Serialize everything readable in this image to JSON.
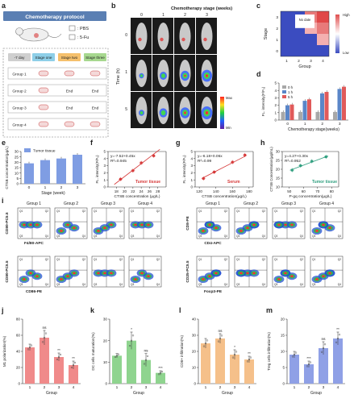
{
  "panels": {
    "a": {
      "letter": "a",
      "title": "Chemotherapy protocol",
      "legend": [
        "PBS",
        "5-Fu"
      ],
      "headers": [
        "-7 day",
        "Stage one",
        "Stage two",
        "Stage three"
      ],
      "groups": [
        "Group 1",
        "Group 2",
        "Group 3",
        "Group 4"
      ],
      "end": "End"
    },
    "b": {
      "letter": "b",
      "title": "Chemotherapy stage (weeks)",
      "ylabel": "Time (h)",
      "cols": [
        "0",
        "1",
        "2",
        "3"
      ],
      "rows": [
        "0",
        "1",
        "5"
      ],
      "scale_max": "Max",
      "scale_min": "Min"
    },
    "c": {
      "letter": "c",
      "note": "No date",
      "ylabel": "Stage",
      "xlabel": "Group",
      "cbar_high": "High",
      "cbar_low": "Low",
      "colors": {
        "low": "#3b4cc0",
        "high": "#e05050"
      }
    },
    "d": {
      "letter": "d",
      "ylabel": "FL. intensity(F/F₀)",
      "xlabel": "Chemotherapy stage(weeks)",
      "legend": [
        "0 h",
        "1 h",
        "5 h"
      ]
    },
    "e": {
      "letter": "e",
      "legend": "Tumor tissue",
      "ylabel": "CTSB concentration(μg/L)",
      "xlabel": "Stage (week)"
    },
    "f": {
      "letter": "f",
      "eq": "y=-7.52+0.45x",
      "r2": "R²=0.945",
      "label": "Tumor tissue",
      "ylabel": "FL. intensity(F/F₀)",
      "xlabel": "CTSB concentration (μg/L)"
    },
    "g": {
      "letter": "g",
      "eq": "y=-6.18+0.06x",
      "r2": "R²=0.99",
      "label": "Serum",
      "ylabel": "FL. intensity(F/F₀)",
      "xlabel": "CTSB concentration(μg/L)"
    },
    "h": {
      "letter": "h",
      "eq": "y=4.27+0.30x",
      "r2": "R²=0.952",
      "label": "Tumor tissue",
      "ylabel": "CTSB Concentration(μg/mL)",
      "xlabel": "P-gq concentration(μg/L)"
    },
    "i": {
      "letter": "i",
      "groups": [
        "Group 1",
        "Group 2",
        "Group 3",
        "Group 4"
      ],
      "left_axes": [
        [
          "F4/80-APC",
          "CD80-PC5.5"
        ],
        [
          "CD86-PE",
          "CD80-PC5.5"
        ]
      ],
      "right_axes": [
        [
          "CD4-APC",
          "CD8-PE"
        ],
        [
          "Foxp3-PE",
          "CD25-PC5.5"
        ]
      ]
    },
    "j": {
      "letter": "j",
      "ylabel": "M1 polarization(%)",
      "xlabel": "Group",
      "sig": [
        "ns",
        "**",
        "**"
      ],
      "color": "#f08a8a"
    },
    "k": {
      "letter": "k",
      "ylabel": "DC cells maturation(%)",
      "xlabel": "Group",
      "sig": [
        "*",
        "ns",
        "***"
      ],
      "color": "#8fd48f"
    },
    "l": {
      "letter": "l",
      "ylabel": "CD8+ infiltration(%)",
      "xlabel": "Group",
      "sig": [
        "ns",
        "*",
        "**"
      ],
      "color": "#f5c08a"
    },
    "m": {
      "letter": "m",
      "ylabel": "Treg cells infiltration(%)",
      "xlabel": "Group",
      "sig": [
        "***",
        "ns",
        "**"
      ],
      "color": "#8fa0e6"
    }
  },
  "chart_data": [
    {
      "type": "heatmap",
      "panel": "c",
      "x": [
        "1",
        "2",
        "3",
        "4"
      ],
      "y": [
        "0",
        "1",
        "2",
        "3"
      ],
      "values": [
        [
          1,
          1,
          1,
          1
        ],
        [
          1,
          1,
          1,
          2
        ],
        [
          1,
          1,
          2,
          3
        ],
        [
          1,
          1,
          3,
          4
        ]
      ]
    },
    {
      "type": "bar",
      "panel": "d",
      "categories": [
        "0",
        "1",
        "2",
        "3"
      ],
      "ylim": [
        0,
        5
      ],
      "series": [
        {
          "name": "0 h",
          "values": [
            1.1,
            1.1,
            1.1,
            1.1
          ]
        },
        {
          "name": "1 h",
          "values": [
            2.0,
            2.6,
            3.6,
            4.2
          ]
        },
        {
          "name": "5 h",
          "values": [
            2.1,
            2.8,
            3.8,
            4.5
          ]
        }
      ],
      "yticks": [
        0,
        1,
        2,
        3,
        4,
        5
      ]
    },
    {
      "type": "bar",
      "panel": "e",
      "categories": [
        "0",
        "1",
        "2",
        "3"
      ],
      "values": [
        19,
        22,
        23.5,
        27
      ],
      "errors": [
        1.5,
        1.5,
        1.5,
        1.5
      ],
      "ylim": [
        0,
        30
      ],
      "yticks": [
        0,
        5,
        10,
        15,
        20,
        25,
        30
      ]
    },
    {
      "type": "scatter",
      "panel": "f",
      "x": [
        19,
        22,
        24,
        27
      ],
      "y": [
        1.1,
        2.3,
        3.4,
        4.4
      ],
      "xlim": [
        16,
        30
      ],
      "ylim": [
        0,
        5
      ],
      "xticks": [
        18,
        20,
        22,
        24,
        26,
        28
      ],
      "yticks": [
        0,
        1,
        2,
        3,
        4,
        5
      ],
      "fit": [
        -7.52,
        0.45
      ]
    },
    {
      "type": "scatter",
      "panel": "g",
      "x": [
        125,
        138,
        160,
        175
      ],
      "y": [
        1.2,
        2.1,
        3.5,
        4.5
      ],
      "xlim": [
        115,
        185
      ],
      "ylim": [
        0,
        5
      ],
      "xticks": [
        120,
        140,
        160,
        180
      ],
      "yticks": [
        0,
        1,
        2,
        3,
        4,
        5
      ],
      "fit": [
        -6.18,
        0.06
      ]
    },
    {
      "type": "scatter",
      "panel": "h",
      "x": [
        52,
        58,
        66,
        76
      ],
      "y": [
        19.5,
        22,
        24.5,
        27
      ],
      "xlim": [
        45,
        85
      ],
      "ylim": [
        10,
        30
      ],
      "xticks": [
        50,
        60,
        70,
        80
      ],
      "yticks": [
        10,
        15,
        20,
        25,
        30
      ],
      "fit": [
        4.27,
        0.3
      ]
    },
    {
      "type": "bar",
      "panel": "j",
      "categories": [
        "1",
        "2",
        "3",
        "4"
      ],
      "values": [
        45,
        57,
        33,
        23
      ],
      "errors": [
        4,
        9,
        5,
        5
      ],
      "ylim": [
        0,
        80
      ],
      "yticks": [
        0,
        20,
        40,
        60,
        80
      ]
    },
    {
      "type": "bar",
      "panel": "k",
      "categories": [
        "1",
        "2",
        "3",
        "4"
      ],
      "values": [
        13,
        20,
        11,
        5
      ],
      "errors": [
        1,
        4,
        3,
        1
      ],
      "ylim": [
        0,
        30
      ],
      "yticks": [
        0,
        10,
        20,
        30
      ]
    },
    {
      "type": "bar",
      "panel": "l",
      "categories": [
        "1",
        "2",
        "3",
        "4"
      ],
      "values": [
        25,
        28,
        18,
        15
      ],
      "errors": [
        3,
        3,
        3,
        2
      ],
      "ylim": [
        0,
        40
      ],
      "yticks": [
        0,
        10,
        20,
        30,
        40
      ]
    },
    {
      "type": "bar",
      "panel": "m",
      "categories": [
        "1",
        "2",
        "3",
        "4"
      ],
      "values": [
        9,
        6,
        11,
        14
      ],
      "errors": [
        1,
        1,
        2,
        2
      ],
      "ylim": [
        0,
        20
      ],
      "yticks": [
        0,
        5,
        10,
        15,
        20
      ]
    }
  ]
}
